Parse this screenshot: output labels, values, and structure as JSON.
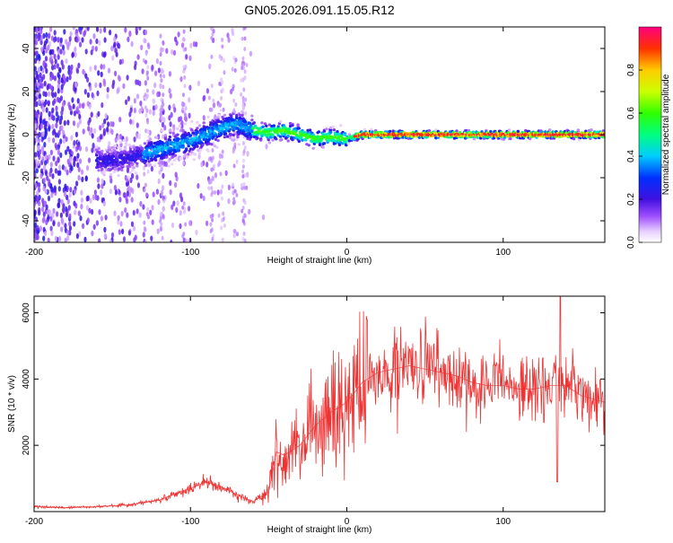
{
  "title": "GN05.2026.091.15.05.R12",
  "chart_data": [
    {
      "type": "heatmap",
      "xlabel": "Height of straight line (km)",
      "ylabel": "Frequency (Hz)",
      "xlim": [
        -200,
        165
      ],
      "ylim": [
        -50,
        50
      ],
      "xticks": [
        -200,
        -100,
        0,
        100
      ],
      "yticks": [
        -40,
        -20,
        0,
        20,
        40
      ],
      "colorbar": {
        "label": "Normalized spectral amplitude",
        "range": [
          0,
          1
        ],
        "ticks": [
          0.0,
          0.2,
          0.4,
          0.6,
          0.8
        ]
      },
      "ridge": {
        "x": [
          -150,
          -140,
          -130,
          -120,
          -110,
          -100,
          -90,
          -80,
          -70,
          -60,
          -50,
          -40,
          -30,
          -20,
          -10,
          0,
          10,
          50,
          100,
          165
        ],
        "frequency": [
          -12,
          -11,
          -9,
          -7,
          -5,
          -3,
          0,
          3,
          5,
          2,
          1,
          2,
          0,
          -2,
          -1,
          -2,
          0,
          0,
          0,
          0
        ]
      }
    },
    {
      "type": "line",
      "xlabel": "Height of straight line (km)",
      "ylabel": "SNR (10 * v/v)",
      "xlim": [
        -200,
        165
      ],
      "ylim": [
        0,
        6500
      ],
      "xticks": [
        -200,
        -100,
        0,
        100
      ],
      "yticks": [
        2000,
        4000,
        6000
      ],
      "color": "#ee3333",
      "series": [
        {
          "name": "SNR",
          "x": [
            -200,
            -180,
            -160,
            -140,
            -120,
            -100,
            -90,
            -80,
            -70,
            -60,
            -50,
            -45,
            -40,
            -30,
            -20,
            -10,
            0,
            10,
            20,
            30,
            40,
            50,
            60,
            70,
            80,
            90,
            100,
            110,
            120,
            130,
            140,
            150,
            165
          ],
          "y": [
            150,
            120,
            150,
            200,
            350,
            700,
            900,
            750,
            500,
            300,
            600,
            1800,
            1700,
            2000,
            2600,
            3000,
            3300,
            3900,
            4200,
            4300,
            4400,
            4300,
            4200,
            4100,
            3900,
            3800,
            3800,
            3700,
            3700,
            3800,
            3800,
            3500,
            3300
          ]
        }
      ]
    }
  ]
}
